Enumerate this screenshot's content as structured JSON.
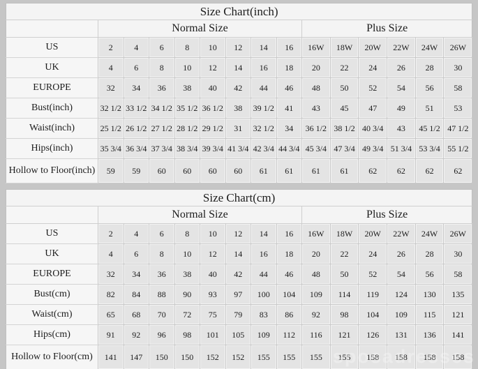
{
  "watermark": "sposadresses",
  "colors": {
    "page_background": "#c6c6c6",
    "table_background": "#f4f4f4",
    "data_cell_background": "#e4e4e4",
    "label_cell_background": "#f6f6f6",
    "border": "#c9c9c9",
    "text": "#1c1c1c"
  },
  "chart_data": [
    {
      "type": "table",
      "title": "Size Chart(inch)",
      "group_headers": {
        "normal": "Normal Size",
        "plus": "Plus Size"
      },
      "column_groups": [
        {
          "label": "Normal Size",
          "span": 8
        },
        {
          "label": "Plus Size",
          "span": 6
        }
      ],
      "rows": [
        {
          "label": "US",
          "values": [
            "2",
            "4",
            "6",
            "8",
            "10",
            "12",
            "14",
            "16",
            "16W",
            "18W",
            "20W",
            "22W",
            "24W",
            "26W"
          ]
        },
        {
          "label": "UK",
          "values": [
            "4",
            "6",
            "8",
            "10",
            "12",
            "14",
            "16",
            "18",
            "20",
            "22",
            "24",
            "26",
            "28",
            "30"
          ]
        },
        {
          "label": "EUROPE",
          "values": [
            "32",
            "34",
            "36",
            "38",
            "40",
            "42",
            "44",
            "46",
            "48",
            "50",
            "52",
            "54",
            "56",
            "58"
          ]
        },
        {
          "label": "Bust(inch)",
          "values": [
            "32 1/2",
            "33 1/2",
            "34 1/2",
            "35 1/2",
            "36 1/2",
            "38",
            "39 1/2",
            "41",
            "43",
            "45",
            "47",
            "49",
            "51",
            "53"
          ]
        },
        {
          "label": "Waist(inch)",
          "values": [
            "25 1/2",
            "26 1/2",
            "27 1/2",
            "28 1/2",
            "29 1/2",
            "31",
            "32 1/2",
            "34",
            "36 1/2",
            "38 1/2",
            "40 3/4",
            "43",
            "45 1/2",
            "47 1/2"
          ]
        },
        {
          "label": "Hips(inch)",
          "values": [
            "35 3/4",
            "36 3/4",
            "37 3/4",
            "38 3/4",
            "39 3/4",
            "41 3/4",
            "42 3/4",
            "44 3/4",
            "45 3/4",
            "47 3/4",
            "49 3/4",
            "51 3/4",
            "53 3/4",
            "55 1/2"
          ]
        },
        {
          "label": "Hollow to Floor(inch)",
          "values": [
            "59",
            "59",
            "60",
            "60",
            "60",
            "60",
            "61",
            "61",
            "61",
            "61",
            "62",
            "62",
            "62",
            "62"
          ]
        }
      ]
    },
    {
      "type": "table",
      "title": "Size Chart(cm)",
      "group_headers": {
        "normal": "Normal Size",
        "plus": "Plus Size"
      },
      "column_groups": [
        {
          "label": "Normal Size",
          "span": 8
        },
        {
          "label": "Plus Size",
          "span": 6
        }
      ],
      "rows": [
        {
          "label": "US",
          "values": [
            "2",
            "4",
            "6",
            "8",
            "10",
            "12",
            "14",
            "16",
            "16W",
            "18W",
            "20W",
            "22W",
            "24W",
            "26W"
          ]
        },
        {
          "label": "UK",
          "values": [
            "4",
            "6",
            "8",
            "10",
            "12",
            "14",
            "16",
            "18",
            "20",
            "22",
            "24",
            "26",
            "28",
            "30"
          ]
        },
        {
          "label": "EUROPE",
          "values": [
            "32",
            "34",
            "36",
            "38",
            "40",
            "42",
            "44",
            "46",
            "48",
            "50",
            "52",
            "54",
            "56",
            "58"
          ]
        },
        {
          "label": "Bust(cm)",
          "values": [
            "82",
            "84",
            "88",
            "90",
            "93",
            "97",
            "100",
            "104",
            "109",
            "114",
            "119",
            "124",
            "130",
            "135"
          ]
        },
        {
          "label": "Waist(cm)",
          "values": [
            "65",
            "68",
            "70",
            "72",
            "75",
            "79",
            "83",
            "86",
            "92",
            "98",
            "104",
            "109",
            "115",
            "121"
          ]
        },
        {
          "label": "Hips(cm)",
          "values": [
            "91",
            "92",
            "96",
            "98",
            "101",
            "105",
            "109",
            "112",
            "116",
            "121",
            "126",
            "131",
            "136",
            "141"
          ]
        },
        {
          "label": "Hollow to Floor(cm)",
          "values": [
            "141",
            "147",
            "150",
            "150",
            "152",
            "152",
            "155",
            "155",
            "155",
            "155",
            "158",
            "158",
            "158",
            "158"
          ]
        }
      ]
    }
  ]
}
